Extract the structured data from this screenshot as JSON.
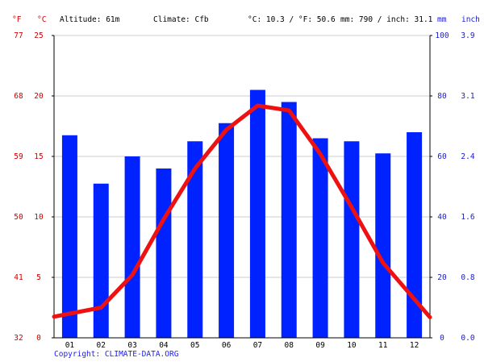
{
  "header": {
    "altitude": "Altitude: 61m",
    "climate": "Climate: Cfb",
    "temp_avg": "°C: 10.3 / °F: 50.6",
    "precip_avg": "mm: 790 / inch: 31.1"
  },
  "units": {
    "fahrenheit": "°F",
    "celsius": "°C",
    "mm": "mm",
    "inch": "inch"
  },
  "copyright": "Copyright: CLIMATE-DATA.ORG",
  "colors": {
    "bar": "#0022ff",
    "line": "#ee1111",
    "temp_axis": "#cc0000",
    "precip_axis": "#1a1acc",
    "grid": "#cccccc",
    "copyright": "#1a1aff"
  },
  "chart_data": {
    "type": "bar",
    "categories": [
      "01",
      "02",
      "03",
      "04",
      "05",
      "06",
      "07",
      "08",
      "09",
      "10",
      "11",
      "12"
    ],
    "series": [
      {
        "type": "bar",
        "unit": "mm",
        "axis": "right",
        "values": [
          67,
          51,
          60,
          56,
          65,
          71,
          82,
          78,
          66,
          65,
          61,
          68
        ]
      },
      {
        "type": "line",
        "unit": "°C",
        "axis": "left",
        "values": [
          2.0,
          2.5,
          5.2,
          9.8,
          14.0,
          17.2,
          19.2,
          18.8,
          15.2,
          10.8,
          6.2,
          3.2
        ]
      }
    ],
    "y_left": {
      "label": "°C",
      "ylim": [
        0,
        25
      ],
      "ticks": [
        0,
        5,
        10,
        15,
        20,
        25
      ]
    },
    "y_left_outer": {
      "label": "°F",
      "ticks": [
        32,
        41,
        50,
        59,
        68,
        77
      ]
    },
    "y_right": {
      "label": "mm",
      "ylim": [
        0,
        100
      ],
      "ticks": [
        0,
        20,
        40,
        60,
        80,
        100
      ]
    },
    "y_right_outer": {
      "label": "inch",
      "ticks": [
        "0.0",
        "0.8",
        "1.6",
        "2.4",
        "3.1",
        "3.9"
      ]
    },
    "grid": true
  }
}
